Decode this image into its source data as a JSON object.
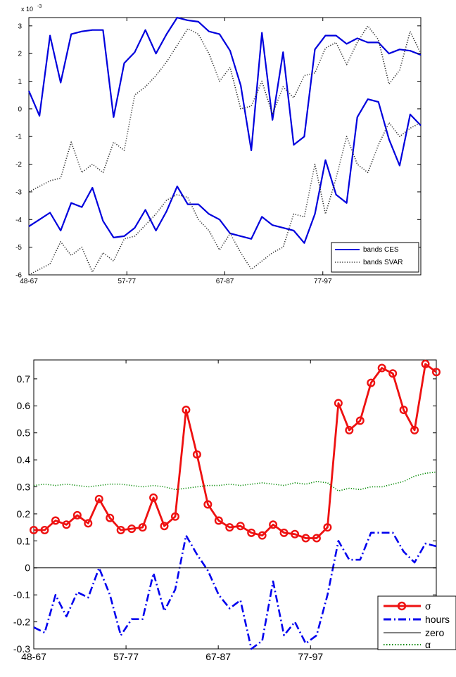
{
  "chart_data": [
    {
      "type": "line",
      "exponent_label": "x 10",
      "exponent_power": "-3",
      "ylim": [
        -6,
        3.3
      ],
      "xlim": [
        1,
        53
      ],
      "yticks": [
        3,
        2,
        1,
        0,
        -1,
        -2,
        -3,
        -4,
        -5,
        -6
      ],
      "ytick_labels": [
        "3",
        "2",
        "1",
        "0",
        "-1",
        "-2",
        "-3",
        "-4",
        "-5",
        "-6"
      ],
      "xticks": [
        1,
        14,
        27,
        40
      ],
      "xtick_labels": [
        "48-67",
        "57-77",
        "67-87",
        "77-97"
      ],
      "grid": false,
      "legend_position": "bottom-right",
      "series": [
        {
          "name": "bands CES",
          "color": "#0000dd",
          "style": "solid",
          "upper": [
            0.65,
            -0.25,
            2.65,
            0.95,
            2.7,
            2.8,
            2.85,
            2.85,
            -0.3,
            1.65,
            2.05,
            2.85,
            2.0,
            2.7,
            3.3,
            3.2,
            3.15,
            2.8,
            2.7,
            2.1,
            0.85,
            -1.5,
            2.75,
            -0.4,
            2.05,
            -1.3,
            -1.0,
            2.15,
            2.65,
            2.65,
            2.35,
            2.55,
            2.4,
            2.4,
            2.0,
            2.15,
            2.1,
            1.95
          ],
          "lower": [
            -4.25,
            -4.0,
            -3.75,
            -4.4,
            -3.4,
            -3.55,
            -2.85,
            -4.05,
            -4.65,
            -4.6,
            -4.3,
            -3.65,
            -4.4,
            -3.7,
            -2.8,
            -3.45,
            -3.45,
            -3.8,
            -4.0,
            -4.5,
            -4.6,
            -4.7,
            -3.9,
            -4.2,
            -4.3,
            -4.4,
            -4.85,
            -3.8,
            -1.85,
            -3.1,
            -3.4,
            -0.3,
            0.35,
            0.25,
            -1.1,
            -2.05,
            -0.2,
            -0.6
          ]
        },
        {
          "name": "bands SVAR",
          "color": "#303030",
          "style": "dotted",
          "upper": [
            -3.0,
            -2.8,
            -2.6,
            -2.5,
            -1.2,
            -2.3,
            -2.0,
            -2.3,
            -1.2,
            -1.5,
            0.5,
            0.8,
            1.2,
            1.7,
            2.3,
            2.9,
            2.7,
            2.0,
            1.0,
            1.5,
            0.0,
            0.1,
            1.0,
            -0.2,
            0.8,
            0.4,
            1.2,
            1.3,
            2.2,
            2.4,
            1.6,
            2.4,
            3.0,
            2.5,
            0.9,
            1.4,
            2.8,
            2.0
          ],
          "lower": [
            -6.0,
            -5.8,
            -5.6,
            -4.8,
            -5.3,
            -5.0,
            -5.9,
            -5.2,
            -5.5,
            -4.7,
            -4.6,
            -4.2,
            -3.8,
            -3.3,
            -3.1,
            -3.2,
            -4.0,
            -4.4,
            -5.1,
            -4.5,
            -5.2,
            -5.8,
            -5.5,
            -5.2,
            -5.0,
            -3.8,
            -3.9,
            -2.0,
            -3.8,
            -2.5,
            -1.0,
            -2.0,
            -2.3,
            -1.3,
            -0.5,
            -1.0,
            -0.7,
            -0.5
          ]
        }
      ]
    },
    {
      "type": "line",
      "ylim": [
        -0.3,
        0.77
      ],
      "xlim": [
        1,
        49
      ],
      "yticks": [
        0.7,
        0.6,
        0.5,
        0.4,
        0.3,
        0.2,
        0.1,
        0,
        -0.1,
        -0.2,
        -0.3
      ],
      "ytick_labels": [
        "0.7",
        "0.6",
        "0.5",
        "0.4",
        "0.3",
        "0.2",
        "0.1",
        "0",
        "-0.1",
        "-0.2",
        "-0.3"
      ],
      "xticks": [
        1,
        12,
        23,
        34
      ],
      "xtick_labels": [
        "48-67",
        "57-77",
        "67-87",
        "77-97"
      ],
      "grid": false,
      "legend_position": "bottom-right",
      "series": [
        {
          "name": "σ",
          "color": "#ee1111",
          "style": "solid-circle",
          "values": [
            0.14,
            0.14,
            0.175,
            0.16,
            0.195,
            0.165,
            0.255,
            0.185,
            0.14,
            0.145,
            0.15,
            0.26,
            0.155,
            0.19,
            0.585,
            0.42,
            0.235,
            0.175,
            0.15,
            0.155,
            0.13,
            0.12,
            0.16,
            0.13,
            0.125,
            0.11,
            0.11,
            0.15,
            0.61,
            0.51,
            0.545,
            0.685,
            0.74,
            0.72,
            0.585,
            0.51,
            0.755,
            0.725
          ]
        },
        {
          "name": "hours",
          "color": "#0000ee",
          "style": "dashdot",
          "values": [
            -0.22,
            -0.24,
            -0.1,
            -0.18,
            -0.09,
            -0.11,
            0.0,
            -0.1,
            -0.25,
            -0.19,
            -0.19,
            -0.02,
            -0.16,
            -0.08,
            0.12,
            0.05,
            -0.01,
            -0.1,
            -0.15,
            -0.12,
            -0.3,
            -0.27,
            -0.05,
            -0.25,
            -0.2,
            -0.28,
            -0.25,
            -0.1,
            0.1,
            0.03,
            0.03,
            0.13,
            0.13,
            0.13,
            0.06,
            0.02,
            0.09,
            0.08
          ]
        },
        {
          "name": "zero",
          "color": "#000000",
          "style": "solid-thin",
          "values": [
            0,
            0
          ]
        },
        {
          "name": "α",
          "color": "#008800",
          "style": "dotted",
          "values": [
            0.305,
            0.31,
            0.305,
            0.31,
            0.305,
            0.3,
            0.305,
            0.31,
            0.31,
            0.305,
            0.3,
            0.305,
            0.3,
            0.29,
            0.295,
            0.3,
            0.305,
            0.305,
            0.31,
            0.305,
            0.31,
            0.315,
            0.31,
            0.305,
            0.315,
            0.31,
            0.32,
            0.315,
            0.285,
            0.295,
            0.29,
            0.3,
            0.3,
            0.31,
            0.32,
            0.34,
            0.35,
            0.355
          ]
        }
      ]
    }
  ]
}
